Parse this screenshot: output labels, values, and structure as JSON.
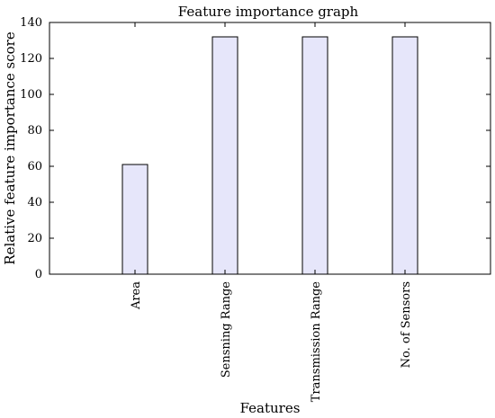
{
  "chart_data": {
    "type": "bar",
    "title": "Feature importance graph",
    "xlabel": "Features",
    "ylabel": "Relative feature importance score",
    "categories": [
      "Area",
      "Sensning Range",
      "Transmission Range",
      "No. of Sensors"
    ],
    "values": [
      61,
      132,
      132,
      132
    ],
    "ylim": [
      0,
      140
    ],
    "yticks": [
      0,
      20,
      40,
      60,
      80,
      100,
      120,
      140
    ],
    "grid": false,
    "legend": "none",
    "colors": {
      "bar_fill": "#e6e6fa",
      "bar_stroke": "#000000",
      "axis": "#000000"
    }
  }
}
